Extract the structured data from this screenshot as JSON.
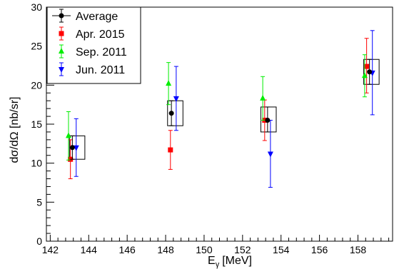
{
  "chart_data": {
    "type": "scatter",
    "title": "",
    "xlabel": "E",
    "xlabel_sub": "γ",
    "xlabel_unit": "[MeV]",
    "ylabel": "dσ/dΩ [nb/sr]",
    "xlim": [
      141.8,
      159.8
    ],
    "ylim": [
      0,
      30
    ],
    "xticks": [
      142,
      144,
      146,
      148,
      150,
      152,
      154,
      156,
      158
    ],
    "yticks": [
      0,
      5,
      10,
      15,
      20,
      25,
      30
    ],
    "grid": false,
    "legend_position": "top-left",
    "series": [
      {
        "name": "Average",
        "color": "#000000",
        "marker": "circle",
        "points": [
          {
            "x": 143.15,
            "y": 12.0,
            "ylo": 10.5,
            "yhi": 13.5,
            "box": [
              143.0,
              143.8
            ]
          },
          {
            "x": 148.3,
            "y": 16.4,
            "ylo": 14.8,
            "yhi": 18.0,
            "box": [
              148.1,
              148.9
            ]
          },
          {
            "x": 153.3,
            "y": 15.5,
            "ylo": 14.0,
            "yhi": 17.2,
            "box": [
              152.95,
              153.75
            ]
          },
          {
            "x": 158.6,
            "y": 21.7,
            "ylo": 20.1,
            "yhi": 23.3,
            "box": [
              158.3,
              159.1
            ]
          }
        ]
      },
      {
        "name": "Apr. 2015",
        "color": "#ff0000",
        "marker": "square",
        "points": [
          {
            "x": 143.05,
            "y": 10.5,
            "ylo": 8.0,
            "yhi": 13.0
          },
          {
            "x": 148.25,
            "y": 11.7,
            "ylo": 9.2,
            "yhi": 14.2
          },
          {
            "x": 153.15,
            "y": 15.5,
            "ylo": 12.9,
            "yhi": 18.1
          },
          {
            "x": 158.45,
            "y": 22.4,
            "ylo": 19.0,
            "yhi": 26.0
          }
        ]
      },
      {
        "name": "Sep. 2011",
        "color": "#00ee00",
        "marker": "triangle-up",
        "points": [
          {
            "x": 142.95,
            "y": 13.5,
            "ylo": 10.4,
            "yhi": 16.6
          },
          {
            "x": 148.15,
            "y": 20.2,
            "ylo": 17.5,
            "yhi": 22.9
          },
          {
            "x": 153.05,
            "y": 18.3,
            "ylo": 15.5,
            "yhi": 21.1
          },
          {
            "x": 158.35,
            "y": 21.2,
            "ylo": 18.5,
            "yhi": 23.9
          }
        ]
      },
      {
        "name": "Jun. 2011",
        "color": "#0000ff",
        "marker": "triangle-down",
        "points": [
          {
            "x": 143.35,
            "y": 12.0,
            "ylo": 8.3,
            "yhi": 15.7
          },
          {
            "x": 148.55,
            "y": 18.3,
            "ylo": 14.2,
            "yhi": 22.4
          },
          {
            "x": 153.45,
            "y": 11.2,
            "ylo": 6.9,
            "yhi": 15.5
          },
          {
            "x": 158.75,
            "y": 21.6,
            "ylo": 16.2,
            "yhi": 27.0
          }
        ]
      }
    ]
  }
}
